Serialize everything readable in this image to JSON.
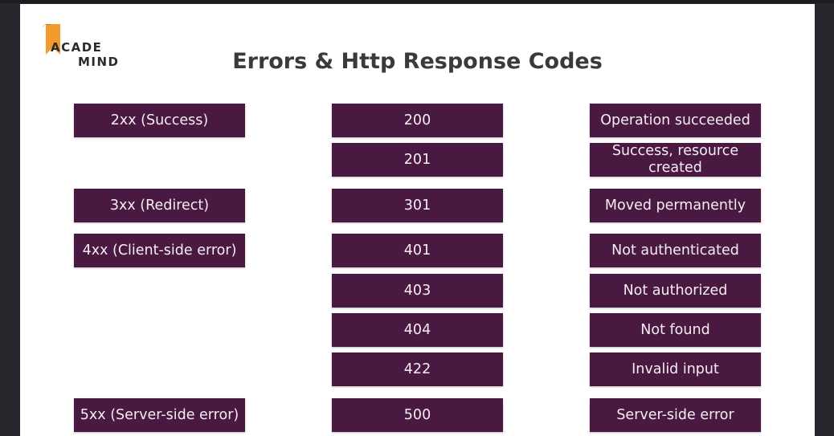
{
  "logo": {
    "line1": "ACADE",
    "line2": "MIND",
    "accent_color": "#f39a2c"
  },
  "title": "Errors & Http Response Codes",
  "colors": {
    "cell_background": "#4a1942",
    "cell_text": "#f4eef3"
  },
  "categories": [
    {
      "label": "2xx (Success)"
    },
    {
      "label": "3xx (Redirect)"
    },
    {
      "label": "4xx (Client-side error)"
    },
    {
      "label": "5xx (Server-side error)"
    }
  ],
  "codes": [
    {
      "code": "200",
      "description": "Operation succeeded"
    },
    {
      "code": "201",
      "description": "Success, resource created"
    },
    {
      "code": "301",
      "description": "Moved permanently"
    },
    {
      "code": "401",
      "description": "Not authenticated"
    },
    {
      "code": "403",
      "description": "Not authorized"
    },
    {
      "code": "404",
      "description": "Not found"
    },
    {
      "code": "422",
      "description": "Invalid input"
    },
    {
      "code": "500",
      "description": "Server-side error"
    }
  ]
}
